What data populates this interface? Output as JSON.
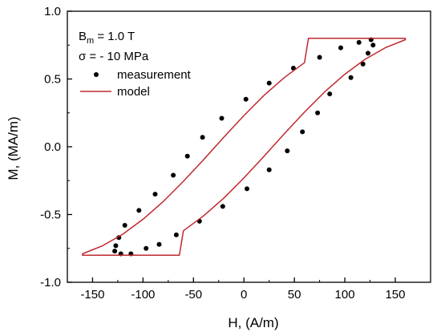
{
  "chart_data": {
    "type": "scatter",
    "xlabel": "H, (A/m)",
    "ylabel": "M, (MA/m)",
    "xlim": [
      -175,
      185
    ],
    "ylim": [
      -1.0,
      1.0
    ],
    "x_ticks": [
      -150,
      -100,
      -50,
      0,
      50,
      100,
      150
    ],
    "y_ticks": [
      -1.0,
      -0.5,
      0.0,
      0.5,
      1.0
    ],
    "x_tick_labels": [
      "-150",
      "-100",
      "-50",
      "0",
      "50",
      "100",
      "150"
    ],
    "y_tick_labels": [
      "-1.0",
      "-0.5",
      "0.0",
      "0.5",
      "1.0"
    ],
    "grid": false,
    "legend_position": "top-left",
    "annotations": {
      "b_symbol": "B",
      "b_subscript": "m",
      "b_value": " = 1.0 T",
      "sigma_symbol": "σ",
      "sigma_value": " = - 10 MPa"
    },
    "series": [
      {
        "name": "measurement",
        "kind": "scatter",
        "color": "#000000",
        "x": [
          -127,
          -124,
          -118,
          -104,
          -88,
          -70,
          -56,
          -41,
          -22,
          2,
          25,
          49,
          75,
          96,
          114,
          126,
          128,
          123,
          118,
          106,
          85,
          73,
          58,
          43,
          25,
          3,
          -21,
          -44,
          -67,
          -84,
          -97,
          -112,
          -122,
          -128
        ],
        "y": [
          -0.73,
          -0.67,
          -0.58,
          -0.47,
          -0.35,
          -0.21,
          -0.07,
          0.07,
          0.21,
          0.35,
          0.47,
          0.58,
          0.66,
          0.73,
          0.77,
          0.79,
          0.75,
          0.69,
          0.61,
          0.51,
          0.39,
          0.25,
          0.11,
          -0.03,
          -0.17,
          -0.31,
          -0.44,
          -0.55,
          -0.65,
          -0.72,
          -0.75,
          -0.79,
          -0.79,
          -0.77
        ]
      },
      {
        "name": "model",
        "kind": "line",
        "color": "#c0282d",
        "x": [
          -160,
          -140,
          -120,
          -100,
          -80,
          -60,
          -40,
          -20,
          0,
          20,
          40,
          60,
          64,
          160,
          160,
          140,
          120,
          100,
          80,
          60,
          40,
          20,
          0,
          -20,
          -40,
          -60,
          -64,
          -160
        ],
        "y": [
          -0.79,
          -0.73,
          -0.645,
          -0.535,
          -0.405,
          -0.255,
          -0.095,
          0.07,
          0.23,
          0.38,
          0.51,
          0.62,
          0.8,
          0.8,
          0.79,
          0.73,
          0.645,
          0.535,
          0.405,
          0.255,
          0.095,
          -0.07,
          -0.23,
          -0.38,
          -0.51,
          -0.62,
          -0.8,
          -0.8
        ]
      }
    ]
  }
}
